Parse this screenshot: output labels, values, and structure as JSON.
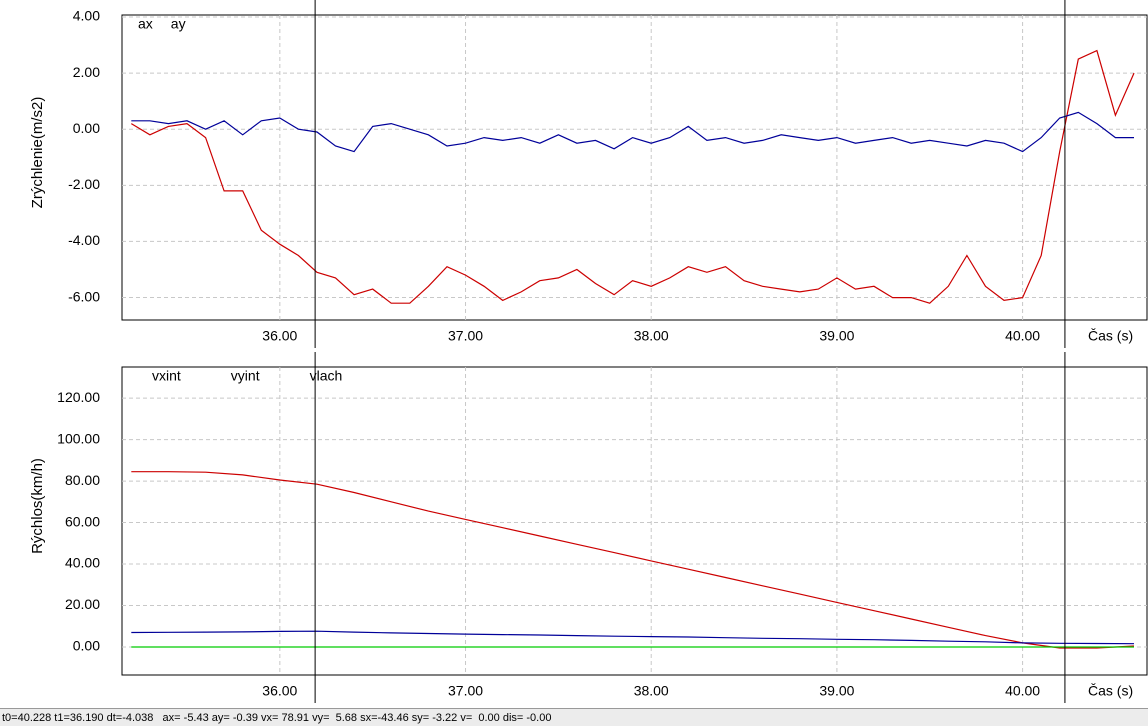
{
  "chart_data": [
    {
      "type": "line",
      "y_label": "Zrýchlenie(m/s2)",
      "x_label": "Čas (s)",
      "x": [
        35.2,
        35.3,
        35.4,
        35.5,
        35.6,
        35.7,
        35.8,
        35.9,
        36.0,
        36.1,
        36.2,
        36.3,
        36.4,
        36.5,
        36.6,
        36.7,
        36.8,
        36.9,
        37.0,
        37.1,
        37.2,
        37.3,
        37.4,
        37.5,
        37.6,
        37.7,
        37.8,
        37.9,
        38.0,
        38.1,
        38.2,
        38.3,
        38.4,
        38.5,
        38.6,
        38.7,
        38.8,
        38.9,
        39.0,
        39.1,
        39.2,
        39.3,
        39.4,
        39.5,
        39.6,
        39.7,
        39.8,
        39.9,
        40.0,
        40.1,
        40.2,
        40.3,
        40.4,
        40.5,
        40.6
      ],
      "series": [
        {
          "name": "ax",
          "color": "#cc0000",
          "values": [
            0.2,
            -0.2,
            0.1,
            0.2,
            -0.3,
            -2.2,
            -2.2,
            -3.6,
            -4.1,
            -4.5,
            -5.1,
            -5.3,
            -5.9,
            -5.7,
            -6.2,
            -6.2,
            -5.6,
            -4.9,
            -5.2,
            -5.6,
            -6.1,
            -5.8,
            -5.4,
            -5.3,
            -5.0,
            -5.5,
            -5.9,
            -5.4,
            -5.6,
            -5.3,
            -4.9,
            -5.1,
            -4.9,
            -5.4,
            -5.6,
            -5.7,
            -5.8,
            -5.7,
            -5.3,
            -5.7,
            -5.6,
            -6.0,
            -6.0,
            -6.2,
            -5.6,
            -4.5,
            -5.6,
            -6.1,
            -6.0,
            -4.5,
            -0.8,
            2.5,
            2.8,
            0.5,
            2.0
          ]
        },
        {
          "name": "ay",
          "color": "#000099",
          "values": [
            0.3,
            0.3,
            0.2,
            0.3,
            0.0,
            0.3,
            -0.2,
            0.3,
            0.4,
            0.0,
            -0.1,
            -0.6,
            -0.8,
            0.1,
            0.2,
            0.0,
            -0.2,
            -0.6,
            -0.5,
            -0.3,
            -0.4,
            -0.3,
            -0.5,
            -0.2,
            -0.5,
            -0.4,
            -0.7,
            -0.3,
            -0.5,
            -0.3,
            0.1,
            -0.4,
            -0.3,
            -0.5,
            -0.4,
            -0.2,
            -0.3,
            -0.4,
            -0.3,
            -0.5,
            -0.4,
            -0.3,
            -0.5,
            -0.4,
            -0.5,
            -0.6,
            -0.4,
            -0.5,
            -0.8,
            -0.3,
            0.4,
            0.6,
            0.2,
            -0.3,
            -0.3
          ]
        }
      ],
      "xlim": [
        35.15,
        40.67
      ],
      "ylim": [
        -6.8,
        4.07
      ],
      "xticks": [
        {
          "value": 36,
          "label": "36.00"
        },
        {
          "value": 37,
          "label": "37.00"
        },
        {
          "value": 38,
          "label": "38.00"
        },
        {
          "value": 39,
          "label": "39.00"
        },
        {
          "value": 40,
          "label": "40.00"
        }
      ],
      "yticks": [
        {
          "value": -6,
          "label": "-6.00"
        },
        {
          "value": -4,
          "label": "-4.00"
        },
        {
          "value": -2,
          "label": "-2.00"
        },
        {
          "value": 0,
          "label": "0.00"
        },
        {
          "value": 2,
          "label": "2.00"
        },
        {
          "value": 4,
          "label": "4.00"
        }
      ],
      "cursors": [
        36.19,
        40.228
      ],
      "grid": true
    },
    {
      "type": "line",
      "y_label": "Rýchlos(km/h)",
      "x_label": "Čas (s)",
      "x": [
        35.2,
        35.4,
        35.6,
        35.8,
        36.0,
        36.2,
        36.4,
        36.6,
        36.8,
        37.0,
        37.2,
        37.4,
        37.6,
        37.8,
        38.0,
        38.2,
        38.4,
        38.6,
        38.8,
        39.0,
        39.2,
        39.4,
        39.6,
        39.8,
        40.0,
        40.2,
        40.4,
        40.6
      ],
      "series": [
        {
          "name": "vxint",
          "color": "#cc0000",
          "values": [
            84.5,
            84.5,
            84.3,
            83,
            80.5,
            78.5,
            74.5,
            70,
            65.5,
            61.5,
            57.5,
            53.5,
            49.5,
            45.5,
            41.5,
            37.5,
            33.5,
            29.5,
            25.5,
            21.5,
            17.5,
            13.5,
            9.5,
            5.5,
            2,
            -0.5,
            -0.5,
            0.5
          ]
        },
        {
          "name": "vyint",
          "color": "#000099",
          "values": [
            7.0,
            7.1,
            7.2,
            7.3,
            7.5,
            7.6,
            7.2,
            6.8,
            6.5,
            6.2,
            6.0,
            5.8,
            5.5,
            5.2,
            5.0,
            4.8,
            4.5,
            4.2,
            4.0,
            3.7,
            3.5,
            3.2,
            2.8,
            2.5,
            2.0,
            1.8,
            1.7,
            1.6
          ]
        },
        {
          "name": "vlach",
          "color": "#00cc00",
          "values": [
            0,
            0,
            0,
            0,
            0,
            0,
            0,
            0,
            0,
            0,
            0,
            0,
            0,
            0,
            0,
            0,
            0,
            0,
            0,
            0,
            0,
            0,
            0,
            0,
            0,
            0,
            0,
            0
          ]
        }
      ],
      "xlim": [
        35.15,
        40.67
      ],
      "ylim": [
        -13.5,
        135
      ],
      "xticks": [
        {
          "value": 36,
          "label": "36.00"
        },
        {
          "value": 37,
          "label": "37.00"
        },
        {
          "value": 38,
          "label": "38.00"
        },
        {
          "value": 39,
          "label": "39.00"
        },
        {
          "value": 40,
          "label": "40.00"
        }
      ],
      "yticks": [
        {
          "value": 0,
          "label": "0.00"
        },
        {
          "value": 20,
          "label": "20.00"
        },
        {
          "value": 40,
          "label": "40.00"
        },
        {
          "value": 60,
          "label": "60.00"
        },
        {
          "value": 80,
          "label": "80.00"
        },
        {
          "value": 100,
          "label": "100.00"
        },
        {
          "value": 120,
          "label": "120.00"
        }
      ],
      "cursors": [
        36.19,
        40.228
      ],
      "grid": true
    }
  ],
  "status_bar": "t0=40.228 t1=36.190 dt=-4.038   ax= -5.43 ay= -0.39 vx= 78.91 vy=  5.68 sx=-43.46 sy= -3.22 v=  0.00 dis= -0.00"
}
